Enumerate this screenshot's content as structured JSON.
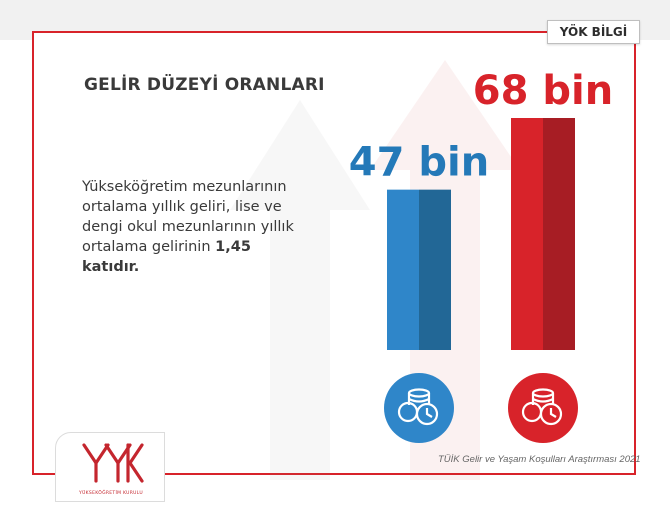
{
  "badge": "YÖK BİLGİ",
  "heading": "GELİR DÜZEYİ ORANLARI",
  "description": {
    "text": "Yükseköğretim mezunlarının ortalama yıllık geliri, lise ve dengi okul mezunlarının yıllık ortalama gelirinin ",
    "bold": "1,45 katıdır."
  },
  "source": "TÜİK Gelir ve Yaşam Koşulları Araştırması 2021",
  "logo_text": "YÜKSEKÖĞRETİM KURULU",
  "colors": {
    "accent_red": "#d8232a",
    "accent_blue": "#2f86c9",
    "text_dark": "#3a3a3a"
  },
  "chart_data": {
    "type": "bar",
    "title": "",
    "xlabel": "",
    "ylabel": "",
    "ylim": [
      0,
      68
    ],
    "categories": [
      "lise ve dengi okul mezunları",
      "yükseköğretim mezunları"
    ],
    "values": [
      47,
      68
    ],
    "labels": [
      "47 bin",
      "68 bin"
    ],
    "bar_colors": [
      {
        "light": "#2f86c9",
        "dark": "#226796",
        "label": "#2479b8"
      },
      {
        "light": "#d8232a",
        "dark": "#a71d24",
        "label": "#d8232a"
      }
    ],
    "icons": [
      "coins-clock-icon",
      "coins-clock-icon"
    ],
    "grid": false,
    "legend": "none"
  }
}
